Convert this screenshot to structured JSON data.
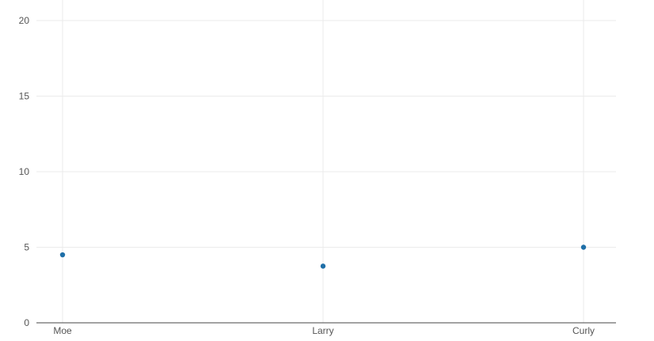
{
  "chart_data": {
    "type": "scatter",
    "title": "",
    "xlabel": "",
    "ylabel": "",
    "categories": [
      "Moe",
      "Larry",
      "Curly"
    ],
    "series": [
      {
        "values": [
          4.5,
          3.75,
          5.0
        ]
      }
    ],
    "ylim": [
      0,
      20
    ],
    "yticks": [
      0,
      5,
      10,
      15,
      20
    ],
    "grid": true,
    "colors": {
      "marker": "#1f6fa8",
      "grid": "#ebebeb",
      "axis": "#444444",
      "text": "#555555"
    }
  }
}
